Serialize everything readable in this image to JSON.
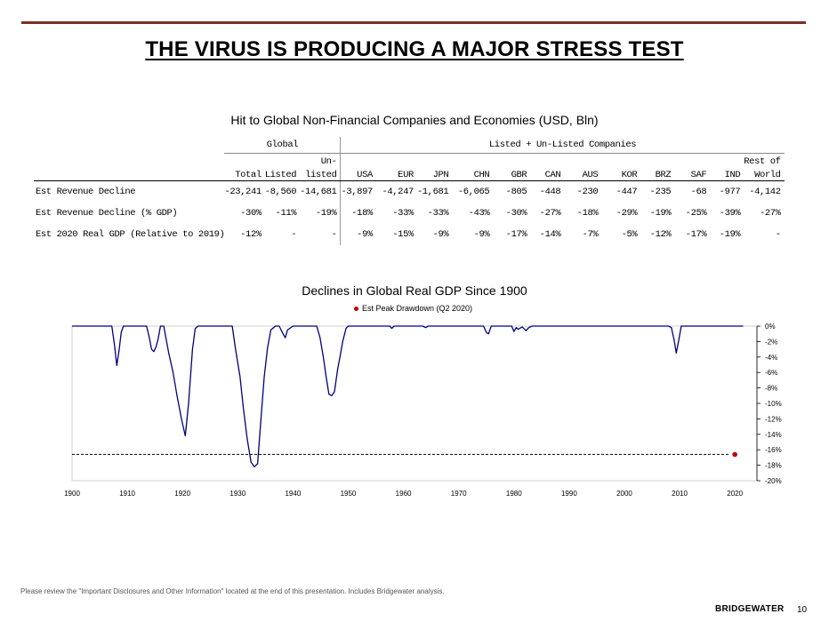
{
  "slide": {
    "title": "THE VIRUS IS PRODUCING A MAJOR STRESS TEST",
    "footnote": "Please review the \"Important Disclosures and Other Information\" located at the end of this presentation. Includes Bridgewater analysis.",
    "brand": "BRIDGEWATER",
    "page_number": "10"
  },
  "table": {
    "title": "Hit to Global Non-Financial Companies and Economies (USD, Bln)",
    "group_headers": [
      "Global",
      "Listed + Un-Listed Companies"
    ],
    "columns": [
      {
        "top": "",
        "bottom": "Total"
      },
      {
        "top": "",
        "bottom": "Listed"
      },
      {
        "top": "Un-",
        "bottom": "listed"
      },
      {
        "top": "",
        "bottom": "USA"
      },
      {
        "top": "",
        "bottom": "EUR"
      },
      {
        "top": "",
        "bottom": "JPN"
      },
      {
        "top": "",
        "bottom": "CHN"
      },
      {
        "top": "",
        "bottom": "GBR"
      },
      {
        "top": "",
        "bottom": "CAN"
      },
      {
        "top": "",
        "bottom": "AUS"
      },
      {
        "top": "",
        "bottom": "KOR"
      },
      {
        "top": "",
        "bottom": "BRZ"
      },
      {
        "top": "",
        "bottom": "SAF"
      },
      {
        "top": "",
        "bottom": "IND"
      },
      {
        "top": "Rest of",
        "bottom": "World"
      }
    ],
    "rows": [
      {
        "label": "Est Revenue Decline",
        "values": [
          "-23,241",
          "-8,560",
          "-14,681",
          "-3,897",
          "-4,247",
          "-1,681",
          "-6,065",
          "-805",
          "-448",
          "-230",
          "-447",
          "-235",
          "-68",
          "-977",
          "-4,142"
        ]
      },
      {
        "label": "Est Revenue Decline (% GDP)",
        "values": [
          "-30%",
          "-11%",
          "-19%",
          "-18%",
          "-33%",
          "-33%",
          "-43%",
          "-30%",
          "-27%",
          "-18%",
          "-29%",
          "-19%",
          "-25%",
          "-39%",
          "-27%"
        ]
      },
      {
        "label": "Est 2020 Real GDP (Relative to 2019)",
        "values": [
          "-12%",
          "-",
          "-",
          "-9%",
          "-15%",
          "-9%",
          "-9%",
          "-17%",
          "-14%",
          "-7%",
          "-5%",
          "-12%",
          "-17%",
          "-19%",
          "-"
        ]
      }
    ]
  },
  "chart_data": {
    "type": "line",
    "title": "Declines in Global Real GDP Since 1900",
    "legend": [
      "Est Peak Drawdown (Q2 2020)"
    ],
    "legend_position": "top-center",
    "xlabel": "",
    "ylabel": "",
    "xlim": [
      1900,
      2022
    ],
    "ylim": [
      -20,
      0
    ],
    "x_ticks": [
      1900,
      1910,
      1920,
      1930,
      1940,
      1950,
      1960,
      1970,
      1980,
      1990,
      2000,
      2010,
      2020
    ],
    "y_ticks": [
      0,
      -2,
      -4,
      -6,
      -8,
      -10,
      -12,
      -14,
      -16,
      -18,
      -20
    ],
    "y_tick_format": "percent",
    "y_axis_side": "right",
    "grid": false,
    "colors": {
      "series": "#000080",
      "marker": "#c00000",
      "reference_line": "#000000"
    },
    "series": [
      {
        "type": "line",
        "x": [
          1900,
          1907.2,
          1907.7,
          1908.1,
          1908.5,
          1908.9,
          1909.3,
          1909.8,
          1913.5,
          1914.0,
          1914.4,
          1914.8,
          1915.2,
          1915.6,
          1916.0,
          1916.6,
          1917.5,
          1918.3,
          1919.0,
          1919.8,
          1920.5,
          1921.1,
          1921.8,
          1922.3,
          1922.8,
          1923.2,
          1929.0,
          1929.6,
          1930.4,
          1931.0,
          1931.7,
          1932.4,
          1933.0,
          1933.6,
          1934.2,
          1934.8,
          1935.4,
          1936.0,
          1936.8,
          1937.5,
          1938.2,
          1938.6,
          1939.0,
          1940.0,
          1944.3,
          1944.9,
          1945.5,
          1946.0,
          1946.5,
          1947.0,
          1947.5,
          1948.1,
          1948.5,
          1949.0,
          1949.6,
          1950.0,
          1957.5,
          1957.9,
          1958.3,
          1963.5,
          1964.0,
          1964.5,
          1974.0,
          1974.5,
          1975.0,
          1975.4,
          1975.9,
          1979.6,
          1980.0,
          1980.4,
          1980.8,
          1981.5,
          1982.2,
          1982.7,
          1983.3,
          2008.0,
          2008.5,
          2009.0,
          2009.4,
          2009.8,
          2010.3,
          2021.5
        ],
        "y": [
          0,
          0,
          -2.5,
          -5.1,
          -3.2,
          -0.8,
          0,
          0,
          0,
          -1.5,
          -3.0,
          -3.3,
          -2.7,
          -1.6,
          0,
          0,
          -3.5,
          -6.0,
          -9.0,
          -12.0,
          -14.2,
          -10.0,
          -3.0,
          -0.3,
          0,
          0,
          0,
          -3.0,
          -6.5,
          -10.5,
          -14.5,
          -17.6,
          -18.2,
          -17.8,
          -12.0,
          -6.5,
          -2.8,
          -0.5,
          0,
          0,
          -1.0,
          -1.5,
          -0.5,
          0,
          0,
          -1.5,
          -4.0,
          -6.5,
          -8.8,
          -9.0,
          -8.5,
          -5.5,
          -4.0,
          -2.0,
          -0.3,
          0,
          0,
          -0.3,
          0,
          0,
          -0.2,
          0,
          0,
          0,
          -0.8,
          -1.0,
          0,
          0,
          -0.7,
          -0.2,
          -0.4,
          -0.1,
          -0.6,
          -0.2,
          0,
          0,
          -0.2,
          -1.8,
          -3.5,
          -2.0,
          0,
          0
        ]
      },
      {
        "name": "Est Peak Drawdown (Q2 2020)",
        "type": "reference",
        "y": -16.6,
        "x_range": [
          1900,
          2020
        ],
        "marker_x": 2020
      }
    ]
  }
}
